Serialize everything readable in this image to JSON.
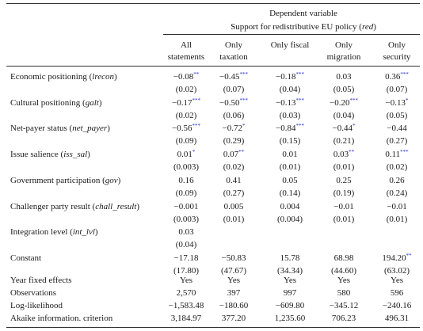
{
  "header": {
    "dependent_title": "Dependent variable",
    "dependent_subtitle_prefix": "Support for redistributive EU policy (",
    "dependent_subtitle_var": "red",
    "dependent_subtitle_suffix": ")",
    "columns": [
      [
        "All",
        "statements"
      ],
      [
        "Only",
        "taxation"
      ],
      [
        "Only fiscal",
        ""
      ],
      [
        "Only",
        "migration"
      ],
      [
        "Only",
        "security"
      ]
    ]
  },
  "rows": [
    {
      "label": "Economic positioning (",
      "var": "lrecon",
      "coef": [
        {
          "v": "−0.08",
          "s": "**"
        },
        {
          "v": "−0.45",
          "s": "***"
        },
        {
          "v": "−0.18",
          "s": "***"
        },
        {
          "v": "0.03",
          "s": ""
        },
        {
          "v": "0.36",
          "s": "***"
        }
      ],
      "se": [
        "(0.02)",
        "(0.07)",
        "(0.04)",
        "(0.05)",
        "(0.07)"
      ]
    },
    {
      "label": "Cultural positioning (",
      "var": "galt",
      "coef": [
        {
          "v": "−0.17",
          "s": "***"
        },
        {
          "v": "−0.50",
          "s": "***"
        },
        {
          "v": "−0.13",
          "s": "***"
        },
        {
          "v": "−0.20",
          "s": "***"
        },
        {
          "v": "−0.13",
          "s": "*"
        }
      ],
      "se": [
        "(0.02)",
        "(0.06)",
        "(0.03)",
        "(0.04)",
        "(0.05)"
      ]
    },
    {
      "label": "Net-payer status (",
      "var": "net_payer",
      "coef": [
        {
          "v": "−0.56",
          "s": "***"
        },
        {
          "v": "−0.72",
          "s": "*"
        },
        {
          "v": "−0.84",
          "s": "***"
        },
        {
          "v": "−0.44",
          "s": "*"
        },
        {
          "v": "−0.44",
          "s": ""
        }
      ],
      "se": [
        "(0.09)",
        "(0.29)",
        "(0.15)",
        "(0.21)",
        "(0.27)"
      ]
    },
    {
      "label": "Issue salience (",
      "var": "iss_sal",
      "coef": [
        {
          "v": "0.01",
          "s": "*"
        },
        {
          "v": "0.07",
          "s": "**"
        },
        {
          "v": "0.01",
          "s": ""
        },
        {
          "v": "0.03",
          "s": "**"
        },
        {
          "v": "0.11",
          "s": "***"
        }
      ],
      "se": [
        "(0.003)",
        "(0.02)",
        "(0.01)",
        "(0.01)",
        "(0.02)"
      ]
    },
    {
      "label": "Government participation (",
      "var": "gov",
      "coef": [
        {
          "v": "0.16",
          "s": ""
        },
        {
          "v": "0.41",
          "s": ""
        },
        {
          "v": "0.05",
          "s": ""
        },
        {
          "v": "0.25",
          "s": ""
        },
        {
          "v": "0.26",
          "s": ""
        }
      ],
      "se": [
        "(0.09)",
        "(0.27)",
        "(0.14)",
        "(0.19)",
        "(0.24)"
      ]
    },
    {
      "label": "Challenger party result (",
      "var": "chall_result",
      "coef": [
        {
          "v": "−0.001",
          "s": ""
        },
        {
          "v": "0.005",
          "s": ""
        },
        {
          "v": "0.004",
          "s": ""
        },
        {
          "v": "−0.01",
          "s": ""
        },
        {
          "v": "−0.01",
          "s": ""
        }
      ],
      "se": [
        "(0.003)",
        "(0.01)",
        "(0.004)",
        "(0.01)",
        "(0.01)"
      ]
    },
    {
      "label": "Integration level (",
      "var": "int_lvl",
      "coef": [
        {
          "v": "0.03",
          "s": ""
        },
        {
          "v": "",
          "s": ""
        },
        {
          "v": "",
          "s": ""
        },
        {
          "v": "",
          "s": ""
        },
        {
          "v": "",
          "s": ""
        }
      ],
      "se": [
        "(0.04)",
        "",
        "",
        "",
        ""
      ]
    },
    {
      "label": "Constant",
      "var": "",
      "coef": [
        {
          "v": "−17.18",
          "s": ""
        },
        {
          "v": "−50.83",
          "s": ""
        },
        {
          "v": "15.78",
          "s": ""
        },
        {
          "v": "68.98",
          "s": ""
        },
        {
          "v": "194.20",
          "s": "**"
        }
      ],
      "se": [
        "(17.80)",
        "(47.67)",
        "(34.34)",
        "(44.60)",
        "(63.02)"
      ]
    }
  ],
  "stats": [
    {
      "label": "Year fixed effects",
      "values": [
        "Yes",
        "Yes",
        "Yes",
        "Yes",
        "Yes"
      ]
    },
    {
      "label": "Observations",
      "values": [
        "2,570",
        "397",
        "997",
        "580",
        "596"
      ]
    },
    {
      "label": "Log-likelihood",
      "values": [
        "−1,583.48",
        "−180.60",
        "−609.80",
        "−345.12",
        "−240.16"
      ]
    },
    {
      "label": "Akaike information. criterion",
      "values": [
        "3,184.97",
        "377.20",
        "1,235.60",
        "706.23",
        "496.31"
      ]
    }
  ]
}
